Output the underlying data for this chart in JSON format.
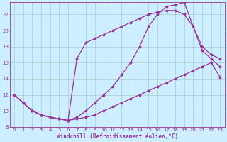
{
  "bg_color": "#cceeff",
  "grid_color": "#aacccc",
  "line_color": "#993399",
  "xlabel": "Windchill (Refroidissement éolien,°C)",
  "xlabel_color": "#993399",
  "xlim": [
    -0.5,
    23.5
  ],
  "ylim": [
    8,
    23.5
  ],
  "yticks": [
    8,
    10,
    12,
    14,
    16,
    18,
    20,
    22
  ],
  "xticks": [
    0,
    1,
    2,
    3,
    4,
    5,
    6,
    7,
    8,
    9,
    10,
    11,
    12,
    13,
    14,
    15,
    16,
    17,
    18,
    19,
    20,
    21,
    22,
    23
  ],
  "line1_x": [
    0,
    1,
    2,
    3,
    4,
    5,
    6,
    7,
    8,
    9,
    10,
    11,
    12,
    13,
    14,
    15,
    16,
    17,
    18,
    19,
    20,
    21,
    22,
    23
  ],
  "line1_y": [
    12,
    11,
    10,
    9.5,
    9.2,
    9.0,
    8.8,
    16.5,
    18.5,
    19.0,
    19.5,
    20.0,
    20.5,
    21.0,
    21.5,
    22.0,
    22.3,
    22.5,
    22.5,
    22.0,
    20.5,
    17.5,
    16.5,
    15.5
  ],
  "line2_x": [
    0,
    1,
    2,
    3,
    4,
    5,
    6,
    7,
    8,
    9,
    10,
    11,
    12,
    13,
    14,
    15,
    16,
    17,
    18,
    19,
    20,
    21,
    22,
    23
  ],
  "line2_y": [
    12,
    11,
    10,
    9.5,
    9.2,
    9.0,
    8.8,
    9.2,
    10.0,
    11.0,
    12.0,
    13.0,
    14.5,
    16.0,
    18.0,
    20.5,
    22.0,
    23.0,
    23.2,
    23.5,
    20.5,
    18.0,
    17.0,
    16.5
  ],
  "line3_x": [
    0,
    1,
    2,
    3,
    4,
    5,
    6,
    7,
    8,
    9,
    10,
    11,
    12,
    13,
    14,
    15,
    16,
    17,
    18,
    19,
    20,
    21,
    22,
    23
  ],
  "line3_y": [
    12,
    11,
    10,
    9.5,
    9.2,
    9.0,
    8.8,
    9.0,
    9.2,
    9.5,
    10.0,
    10.5,
    11.0,
    11.5,
    12.0,
    12.5,
    13.0,
    13.5,
    14.0,
    14.5,
    15.0,
    15.5,
    16.0,
    14.2
  ]
}
